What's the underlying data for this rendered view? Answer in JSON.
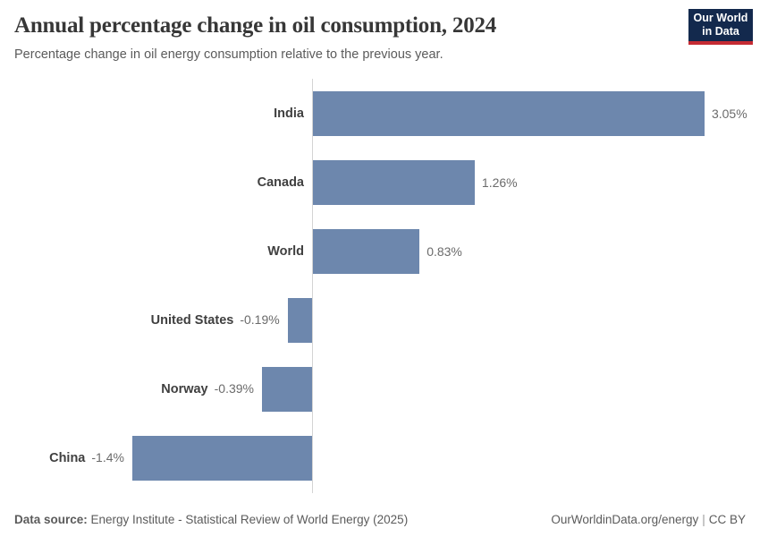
{
  "header": {
    "title": "Annual percentage change in oil consumption, 2024",
    "subtitle": "Percentage change in oil energy consumption relative to the previous year.",
    "logo": {
      "line1": "Our World",
      "line2": "in Data",
      "bg_color": "#13294d",
      "accent_color": "#c52b33",
      "text_color": "#ffffff"
    }
  },
  "chart_data": {
    "type": "bar",
    "orientation": "horizontal",
    "categories": [
      "India",
      "Canada",
      "World",
      "United States",
      "Norway",
      "China"
    ],
    "values": [
      3.05,
      1.26,
      0.83,
      -0.19,
      -0.39,
      -1.4
    ],
    "value_labels": [
      "3.05%",
      "1.26%",
      "0.83%",
      "-0.19%",
      "-0.39%",
      "-1.4%"
    ],
    "title": "Annual percentage change in oil consumption, 2024",
    "xlabel": "",
    "ylabel": "",
    "xlim": [
      -1.5,
      3.5
    ],
    "grid": false,
    "legend": false,
    "bar_color": "#6d87ad",
    "axis_color": "#d4d4d4"
  },
  "footer": {
    "datasource_label": "Data source:",
    "datasource_value": " Energy Institute - Statistical Review of World Energy (2025)",
    "url": "OurWorldinData.org/energy",
    "separator": "|",
    "license": "CC BY"
  }
}
